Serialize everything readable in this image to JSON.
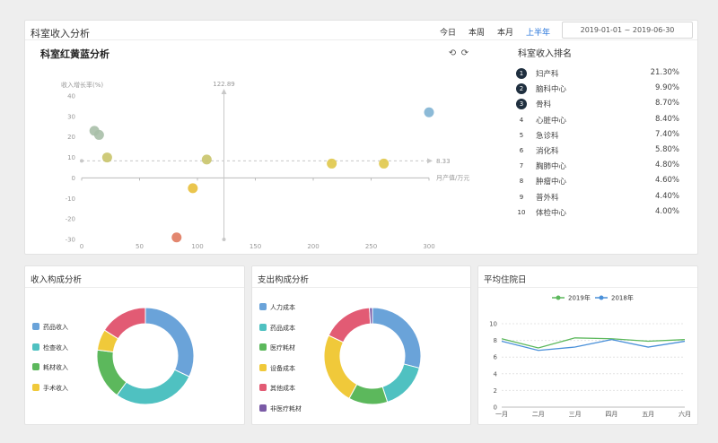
{
  "top": {
    "title": "科室收入分析",
    "tabs": [
      {
        "label": "今日",
        "active": false
      },
      {
        "label": "本周",
        "active": false
      },
      {
        "label": "本月",
        "active": false
      },
      {
        "label": "上半年",
        "active": true
      }
    ],
    "date_range": "2019-01-01 ~ 2019-06-30",
    "scatter_title": "科室红黄蓝分析",
    "ranking_title": "科室收入排名",
    "ranking": [
      {
        "rank": "1",
        "name": "妇产科",
        "pct": "21.30%"
      },
      {
        "rank": "2",
        "name": "脑科中心",
        "pct": "9.90%"
      },
      {
        "rank": "3",
        "name": "骨科",
        "pct": "8.70%"
      },
      {
        "rank": "4",
        "name": "心脏中心",
        "pct": "8.40%"
      },
      {
        "rank": "5",
        "name": "急诊科",
        "pct": "7.40%"
      },
      {
        "rank": "6",
        "name": "消化科",
        "pct": "5.80%"
      },
      {
        "rank": "7",
        "name": "胸肺中心",
        "pct": "4.80%"
      },
      {
        "rank": "8",
        "name": "肿瘤中心",
        "pct": "4.60%"
      },
      {
        "rank": "9",
        "name": "普外科",
        "pct": "4.40%"
      },
      {
        "rank": "10",
        "name": "体检中心",
        "pct": "4.00%"
      }
    ],
    "toolbar_icons": [
      "restore-icon",
      "refresh-icon"
    ]
  },
  "panels": {
    "income_title": "收入构成分析",
    "expense_title": "支出构成分析",
    "stay_title": "平均住院日"
  },
  "chart_data": [
    {
      "type": "scatter",
      "title": "科室红黄蓝分析",
      "ylabel": "收入增长率(%)",
      "xlabel": "月产值/万元",
      "xlim": [
        0,
        300
      ],
      "ylim": [
        -30,
        40
      ],
      "xticks": [
        "0",
        "50",
        "100",
        "150",
        "200",
        "250",
        "300"
      ],
      "yticks": [
        "40",
        "30",
        "20",
        "10",
        "0",
        "-10",
        "-20",
        "-30"
      ],
      "markline_x": {
        "value": 122.89,
        "label": "122.89"
      },
      "markline_y": {
        "value": 8.33,
        "label": "8.33"
      },
      "points": [
        {
          "x": 11,
          "y": 23,
          "color": "#a8bfa8"
        },
        {
          "x": 15,
          "y": 21,
          "color": "#a8bfa8"
        },
        {
          "x": 22,
          "y": 10,
          "color": "#c9c46a"
        },
        {
          "x": 108,
          "y": 9,
          "color": "#c9c46a"
        },
        {
          "x": 96,
          "y": -5,
          "color": "#e8bf3a"
        },
        {
          "x": 82,
          "y": -29,
          "color": "#e07a5f"
        },
        {
          "x": 216,
          "y": 7,
          "color": "#e0c84a"
        },
        {
          "x": 261,
          "y": 7,
          "color": "#e0c84a"
        },
        {
          "x": 300,
          "y": 32,
          "color": "#7fb3d3"
        }
      ],
      "grid": false
    },
    {
      "type": "pie",
      "title": "收入构成分析",
      "donut": true,
      "legend_position": "left",
      "slices": [
        {
          "name": "药品收入",
          "value": 32,
          "color": "#6aa3d9"
        },
        {
          "name": "检查收入",
          "value": 28,
          "color": "#4fc1c1"
        },
        {
          "name": "耗材收入",
          "value": 17,
          "color": "#5cb85c"
        },
        {
          "name": "手术收入",
          "value": 7,
          "color": "#f0c93a"
        },
        {
          "name": "",
          "value": 16,
          "color": "#e25b74"
        }
      ]
    },
    {
      "type": "pie",
      "title": "支出构成分析",
      "donut": true,
      "legend_position": "left",
      "slices": [
        {
          "name": "人力成本",
          "value": 29,
          "color": "#6aa3d9"
        },
        {
          "name": "药品成本",
          "value": 16,
          "color": "#4fc1c1"
        },
        {
          "name": "医疗耗材",
          "value": 13,
          "color": "#5cb85c"
        },
        {
          "name": "设备成本",
          "value": 24,
          "color": "#f0c93a"
        },
        {
          "name": "其他成本",
          "value": 17,
          "color": "#e25b74"
        },
        {
          "name": "非医疗耗材",
          "value": 1,
          "color": "#7a5aa6"
        }
      ]
    },
    {
      "type": "line",
      "title": "平均住院日",
      "categories": [
        "一月",
        "二月",
        "三月",
        "四月",
        "五月",
        "六月"
      ],
      "ylim": [
        0,
        10
      ],
      "yticks": [
        "10",
        "8",
        "6",
        "4",
        "2",
        "0"
      ],
      "legend_position": "top",
      "series": [
        {
          "name": "2019年",
          "color": "#5cb85c",
          "values": [
            8.2,
            7.1,
            8.3,
            8.2,
            7.9,
            8.1
          ]
        },
        {
          "name": "2018年",
          "color": "#4a90d9",
          "values": [
            7.9,
            6.8,
            7.2,
            8.1,
            7.2,
            7.9
          ]
        }
      ]
    }
  ]
}
